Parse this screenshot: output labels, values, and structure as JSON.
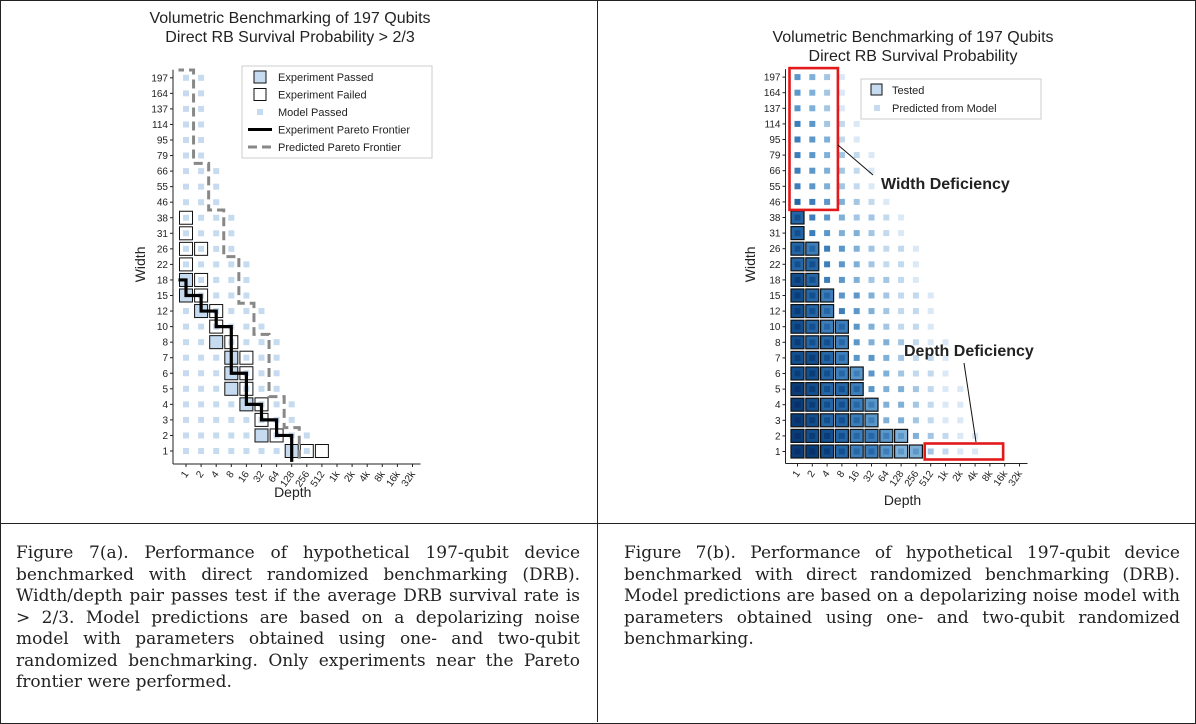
{
  "chart_data": [
    {
      "type": "heatmap",
      "title": "Volumetric Benchmarking of 197 Qubits",
      "subtitle": "Direct RB Survival Probability > 2/3",
      "xlabel": "Depth",
      "ylabel": "Width",
      "x_ticks": [
        "1",
        "2",
        "4",
        "8",
        "16",
        "32",
        "64",
        "128",
        "256",
        "512",
        "1k",
        "2k",
        "4k",
        "8k",
        "16k",
        "32k"
      ],
      "y_ticks": [
        "1",
        "2",
        "3",
        "4",
        "5",
        "6",
        "7",
        "8",
        "10",
        "12",
        "15",
        "18",
        "22",
        "26",
        "31",
        "38",
        "46",
        "55",
        "66",
        "79",
        "95",
        "114",
        "137",
        "164",
        "197"
      ],
      "legend": [
        {
          "label": "Experiment Passed",
          "style": "square-filled"
        },
        {
          "label": "Experiment Failed",
          "style": "square-open"
        },
        {
          "label": "Model Passed",
          "style": "small-square"
        },
        {
          "label": "Experiment Pareto Frontier",
          "style": "line-solid"
        },
        {
          "label": "Predicted Pareto Frontier",
          "style": "line-dashed"
        }
      ],
      "model_passed_max_depth_index": [
        8,
        8,
        7,
        7,
        6,
        6,
        6,
        6,
        5,
        5,
        4,
        4,
        4,
        3,
        3,
        3,
        2,
        2,
        2,
        1,
        1,
        1,
        1,
        1,
        1
      ],
      "experiments": [
        {
          "w": 0,
          "d": 7,
          "passed": true
        },
        {
          "w": 0,
          "d": 8,
          "passed": false
        },
        {
          "w": 0,
          "d": 9,
          "passed": false
        },
        {
          "w": 1,
          "d": 5,
          "passed": true
        },
        {
          "w": 1,
          "d": 6,
          "passed": false
        },
        {
          "w": 2,
          "d": 5,
          "passed": false
        },
        {
          "w": 3,
          "d": 4,
          "passed": true
        },
        {
          "w": 3,
          "d": 5,
          "passed": false
        },
        {
          "w": 4,
          "d": 3,
          "passed": true
        },
        {
          "w": 4,
          "d": 4,
          "passed": false
        },
        {
          "w": 5,
          "d": 3,
          "passed": true
        },
        {
          "w": 5,
          "d": 4,
          "passed": false
        },
        {
          "w": 6,
          "d": 3,
          "passed": true
        },
        {
          "w": 6,
          "d": 4,
          "passed": false
        },
        {
          "w": 7,
          "d": 2,
          "passed": true
        },
        {
          "w": 7,
          "d": 3,
          "passed": false
        },
        {
          "w": 8,
          "d": 2,
          "passed": false
        },
        {
          "w": 9,
          "d": 1,
          "passed": true
        },
        {
          "w": 9,
          "d": 2,
          "passed": false
        },
        {
          "w": 10,
          "d": 0,
          "passed": true
        },
        {
          "w": 10,
          "d": 1,
          "passed": false
        },
        {
          "w": 11,
          "d": 0,
          "passed": true
        },
        {
          "w": 11,
          "d": 1,
          "passed": false
        },
        {
          "w": 12,
          "d": 0,
          "passed": false
        },
        {
          "w": 13,
          "d": 0,
          "passed": false
        },
        {
          "w": 13,
          "d": 1,
          "passed": false
        },
        {
          "w": 14,
          "d": 0,
          "passed": false
        },
        {
          "w": 15,
          "d": 0,
          "passed": false
        }
      ],
      "experiment_frontier": [
        [
          0,
          7
        ],
        [
          1,
          5
        ],
        [
          3,
          4
        ],
        [
          4,
          3
        ],
        [
          7,
          2
        ],
        [
          9,
          1
        ],
        [
          10,
          0
        ]
      ],
      "predicted_frontier": [
        [
          0,
          8
        ],
        [
          2,
          7
        ],
        [
          4,
          6
        ],
        [
          8,
          5
        ],
        [
          10,
          4
        ],
        [
          13,
          3
        ],
        [
          16,
          2
        ],
        [
          19,
          1
        ],
        [
          25,
          0
        ]
      ]
    },
    {
      "type": "heatmap",
      "title": "Volumetric Benchmarking of 197 Qubits",
      "subtitle": "Direct RB Survival Probability",
      "xlabel": "Depth",
      "ylabel": "Width",
      "x_ticks": [
        "1",
        "2",
        "4",
        "8",
        "16",
        "32",
        "64",
        "128",
        "256",
        "512",
        "1k",
        "2k",
        "4k",
        "8k",
        "16k",
        "32k"
      ],
      "y_ticks": [
        "1",
        "2",
        "3",
        "4",
        "5",
        "6",
        "7",
        "8",
        "10",
        "12",
        "15",
        "18",
        "22",
        "26",
        "31",
        "38",
        "46",
        "55",
        "66",
        "79",
        "95",
        "114",
        "137",
        "164",
        "197"
      ],
      "legend": [
        {
          "label": "Tested",
          "style": "square-open-filled"
        },
        {
          "label": "Predicted from Model",
          "style": "small-square"
        }
      ],
      "annotations": [
        {
          "text": "Width Deficiency"
        },
        {
          "text": "Depth Deficiency"
        }
      ],
      "color_scale": [
        "#f1f5fb",
        "#dbe8f5",
        "#c3d9ee",
        "#a3c6e4",
        "#7fb0d8",
        "#5b97c9",
        "#3d7eba",
        "#2566a6",
        "#134f8e",
        "#0a3d78",
        "#08306b"
      ],
      "model_max_depth_index": [
        12,
        12,
        11,
        11,
        11,
        10,
        10,
        10,
        9,
        9,
        9,
        8,
        8,
        8,
        7,
        7,
        6,
        5,
        5,
        5,
        4,
        4,
        3,
        3,
        3
      ],
      "tested_max_depth_index": [
        8,
        7,
        5,
        5,
        4,
        4,
        3,
        3,
        3,
        2,
        2,
        1,
        1,
        1,
        0,
        0,
        -1,
        -1,
        -1,
        -1,
        -1,
        -1,
        -1,
        -1,
        -1
      ]
    }
  ],
  "captions": {
    "a": "Figure 7(a).  Performance of hypothetical 197-qubit device benchmarked with direct randomized benchmarking (DRB). Width/depth pair passes test if the average DRB survival rate is > 2/3.  Model predictions are based on a depolarizing noise model with parameters obtained using one- and two-qubit randomized benchmarking.  Only experiments near the Pareto frontier were performed.",
    "b": "Figure 7(b).  Performance of hypothetical 197-qubit device benchmarked with direct randomized benchmarking (DRB). Model predictions are based on a depolarizing noise model with parameters obtained using one- and two-qubit randomized benchmarking."
  }
}
